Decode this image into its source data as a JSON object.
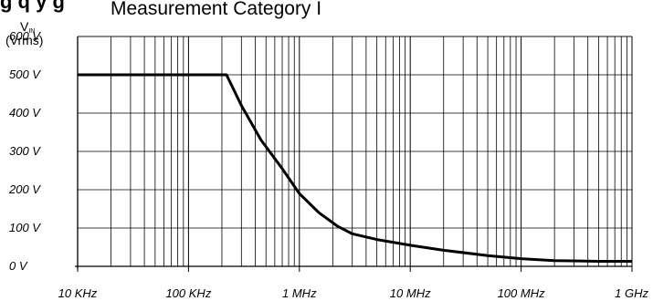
{
  "header": {
    "partial_title": "g     q   y     g",
    "subtitle": "Measurement Category I"
  },
  "chart_data": {
    "type": "line",
    "title": "",
    "subtitle": "Measurement Category I",
    "ylabel_main": "V",
    "ylabel_sub": "IN",
    "ylabel_unit": "(Vrms)",
    "xlabel": "",
    "x_scale": "log",
    "xlim_hz": [
      10000,
      1000000000
    ],
    "ylim": [
      0,
      600
    ],
    "grid": true,
    "x_ticks": [
      {
        "value": 10000,
        "label": "10 KHz"
      },
      {
        "value": 100000,
        "label": "100 KHz"
      },
      {
        "value": 1000000,
        "label": "1 MHz"
      },
      {
        "value": 10000000,
        "label": "10 MHz"
      },
      {
        "value": 100000000,
        "label": "100 MHz"
      },
      {
        "value": 1000000000,
        "label": "1 GHz"
      }
    ],
    "y_ticks": [
      {
        "value": 0,
        "label": "0 V"
      },
      {
        "value": 100,
        "label": "100 V"
      },
      {
        "value": 200,
        "label": "200 V"
      },
      {
        "value": 300,
        "label": "300 V"
      },
      {
        "value": 400,
        "label": "400 V"
      },
      {
        "value": 500,
        "label": "500 V"
      },
      {
        "value": 600,
        "label": "600 V"
      }
    ],
    "series": [
      {
        "color": "#000000",
        "x": [
          10000,
          100000,
          220000,
          300000,
          450000,
          700000,
          1000000,
          1500000,
          2200000,
          3000000,
          5000000,
          10000000,
          20000000,
          50000000,
          100000000,
          200000000,
          500000000,
          1000000000
        ],
        "y": [
          500,
          500,
          500,
          420,
          330,
          255,
          190,
          140,
          105,
          85,
          70,
          55,
          42,
          28,
          20,
          15,
          13,
          13
        ]
      }
    ]
  }
}
